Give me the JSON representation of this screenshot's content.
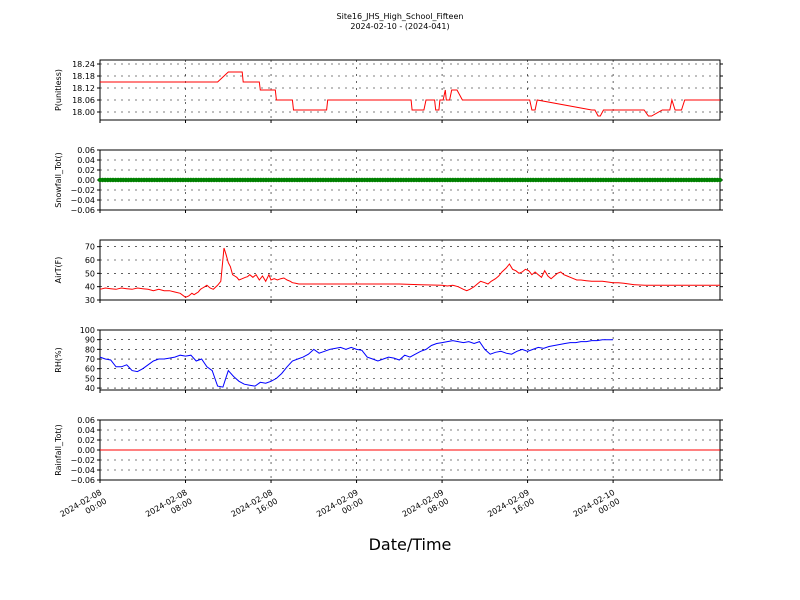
{
  "header": {
    "title": "Site16_JHS_High_School_Fifteen",
    "subtitle": "2024-02-10 - (2024-041)"
  },
  "xlabel": "Date/Time",
  "x_ticks": [
    {
      "t": 0,
      "line1": "2024-02-08",
      "line2": "00:00"
    },
    {
      "t": 8,
      "line1": "2024-02-08",
      "line2": "08:00"
    },
    {
      "t": 16,
      "line1": "2024-02-08",
      "line2": "16:00"
    },
    {
      "t": 24,
      "line1": "2024-02-09",
      "line2": "00:00"
    },
    {
      "t": 32,
      "line1": "2024-02-09",
      "line2": "08:00"
    },
    {
      "t": 40,
      "line1": "2024-02-09",
      "line2": "16:00"
    },
    {
      "t": 48,
      "line1": "2024-02-10",
      "line2": "00:00"
    }
  ],
  "chart_data": [
    {
      "type": "line",
      "ylabel": "P(unitless)",
      "ylim": [
        17.96,
        18.26
      ],
      "yticks": [
        "18.00",
        "18.06",
        "18.12",
        "18.18",
        "18.24"
      ],
      "grid": true,
      "color": "#ff0000",
      "series": [
        {
          "x": [
            0,
            10.9,
            11,
            12,
            12.1,
            13.3,
            13.4,
            14.9,
            15,
            16.4,
            16.5,
            18,
            18.1,
            21.2,
            21.3,
            29.1,
            29.2,
            30.3,
            30.5,
            31.3,
            31.4,
            31.7,
            31.8,
            32.1,
            32.3,
            32.4,
            32.7,
            32.9,
            33.4,
            33.9,
            34.5,
            40.2,
            40.4,
            40.7,
            40.9,
            46,
            46.3,
            46.6,
            46.8,
            47.1,
            47.3,
            50.6,
            50.9,
            51.3,
            51.6,
            52.6,
            53.3,
            53.5,
            53.8,
            54.4,
            54.7,
            55.1,
            55.3,
            56.2,
            56.8,
            57.2,
            58
          ],
          "y": [
            18.15,
            18.15,
            18.15,
            18.2,
            18.2,
            18.2,
            18.15,
            18.15,
            18.11,
            18.11,
            18.06,
            18.06,
            18.01,
            18.01,
            18.06,
            18.06,
            18.01,
            18.01,
            18.06,
            18.06,
            18.01,
            18.01,
            18.06,
            18.06,
            18.11,
            18.06,
            18.06,
            18.11,
            18.11,
            18.06,
            18.06,
            18.06,
            18.01,
            18.01,
            18.06,
            18.01,
            18.01,
            17.98,
            17.98,
            18.01,
            18.01,
            18.01,
            18.01,
            17.98,
            17.98,
            18.01,
            18.01,
            18.06,
            18.01,
            18.01,
            18.06,
            18.06,
            18.06,
            18.06,
            18.06,
            18.06,
            18.06
          ]
        }
      ]
    },
    {
      "type": "scatter",
      "ylabel": "Snowfall_Tot()",
      "ylim": [
        -0.06,
        0.06
      ],
      "yticks": [
        "−0.06",
        "−0.04",
        "−0.02",
        "0.00",
        "0.02",
        "0.04",
        "0.06"
      ],
      "grid": true,
      "color": "#008000",
      "constant_value": 0.0,
      "point_count": 240
    },
    {
      "type": "line",
      "ylabel": "AirT(F)",
      "ylim": [
        30,
        75
      ],
      "yticks": [
        "30",
        "40",
        "50",
        "60",
        "70"
      ],
      "grid": true,
      "color": "#ff0000",
      "series": [
        {
          "x": [
            0,
            0.5,
            1,
            1.5,
            2,
            2.5,
            3,
            3.5,
            4,
            4.5,
            5,
            5.5,
            6,
            6.5,
            7,
            7.5,
            8,
            8.3,
            8.6,
            8.8,
            9,
            9.2,
            9.4,
            9.6,
            9.8,
            10,
            10.3,
            10.6,
            11,
            11.3,
            11.6,
            11.8,
            12,
            12.2,
            12.4,
            12.6,
            12.8,
            13,
            13.3,
            13.6,
            13.8,
            14,
            14.3,
            14.6,
            14.9,
            15.2,
            15.5,
            15.8,
            16,
            16.3,
            16.6,
            16.9,
            17.2,
            17.5,
            17.8,
            18,
            18.3,
            18.6,
            19,
            19.5,
            20,
            21,
            22,
            24,
            26,
            28,
            30,
            32,
            32.5,
            33,
            33.5,
            34,
            34.3,
            34.6,
            35,
            35.3,
            35.6,
            36,
            36.3,
            36.6,
            37,
            37.3,
            37.6,
            38,
            38.3,
            38.6,
            38.9,
            39.2,
            39.5,
            39.8,
            40.1,
            40.4,
            40.7,
            41,
            41.3,
            41.6,
            41.9,
            42.2,
            42.5,
            42.8,
            43.1,
            43.4,
            43.7,
            44,
            44.3,
            44.6,
            45,
            45.5,
            46,
            46.5,
            47,
            47.5,
            48,
            48.5,
            49,
            49.5,
            50,
            51,
            52,
            53,
            54,
            55,
            56,
            57,
            58
          ],
          "y": [
            38,
            39,
            38.5,
            38,
            39,
            38.5,
            38,
            39,
            38.5,
            38,
            37,
            38,
            37,
            37,
            36,
            35,
            32,
            33,
            35,
            34,
            35,
            36,
            38,
            39,
            40,
            41,
            39,
            38,
            41,
            44,
            69,
            64,
            58,
            55,
            49,
            48,
            47,
            45,
            46,
            47,
            47.5,
            49,
            47,
            49,
            45,
            48,
            44,
            49,
            45,
            46,
            45,
            46,
            46.5,
            45,
            44,
            43,
            42.5,
            42,
            42,
            42,
            42,
            42,
            42,
            42,
            42,
            42,
            41.5,
            41,
            40.5,
            41,
            40,
            38,
            37,
            38,
            40,
            42,
            44,
            43,
            42,
            44,
            46,
            48,
            51,
            54,
            57,
            53,
            52,
            50,
            51,
            53,
            52,
            49,
            51,
            49,
            47,
            52,
            48,
            46,
            48,
            50,
            51,
            49,
            48,
            47,
            46,
            45,
            45,
            44.5,
            44,
            44,
            44,
            43.5,
            43,
            43,
            42.5,
            42,
            41.5,
            41,
            41,
            41,
            41,
            41,
            41,
            41,
            41
          ],
          "_pad": []
        }
      ]
    },
    {
      "type": "line",
      "ylabel": "RH(%)",
      "ylim": [
        38,
        100
      ],
      "yticks": [
        "40",
        "50",
        "60",
        "70",
        "80",
        "90",
        "100"
      ],
      "grid": true,
      "color": "#0000ff",
      "series": [
        {
          "x": [
            0,
            0.5,
            1,
            1.5,
            2,
            2.5,
            3,
            3.5,
            4,
            4.5,
            5,
            5.5,
            6,
            6.5,
            7,
            7.5,
            8,
            8.5,
            9,
            9.5,
            10,
            10.5,
            11,
            11.5,
            12,
            12.5,
            13,
            13.5,
            14,
            14.5,
            15,
            15.5,
            16,
            16.5,
            17,
            17.5,
            18,
            18.5,
            19,
            19.5,
            20,
            20.5,
            21,
            21.5,
            22,
            22.5,
            23,
            23.5,
            24,
            24.5,
            25,
            25.5,
            26,
            26.5,
            27,
            27.5,
            28,
            28.5,
            29,
            29.5,
            30,
            30.5,
            31,
            31.5,
            32,
            32.5,
            33,
            33.5,
            34,
            34.5,
            35,
            35.5,
            36,
            36.5,
            37,
            37.5,
            38,
            38.5,
            39,
            39.5,
            40,
            40.5,
            41,
            41.5,
            42,
            42.5,
            43,
            43.5,
            44,
            44.5,
            45,
            45.5,
            46,
            46.5,
            47,
            47.5,
            48
          ],
          "y": [
            72,
            70,
            69,
            62,
            62,
            64,
            58,
            57,
            60,
            64,
            68,
            70,
            70,
            71,
            72,
            74,
            73,
            74,
            68,
            70,
            62,
            58,
            42,
            41,
            58,
            52,
            47,
            44,
            43,
            42,
            46,
            45,
            47,
            50,
            55,
            62,
            68,
            70,
            72,
            75,
            80,
            76,
            78,
            80,
            81,
            82,
            80,
            82,
            80,
            79,
            72,
            70,
            68,
            70,
            72,
            71,
            69,
            74,
            72,
            75,
            78,
            80,
            84,
            86,
            87,
            88,
            89,
            88,
            87,
            88,
            86,
            88,
            80,
            75,
            77,
            78,
            76,
            75,
            78,
            80,
            78,
            80,
            82,
            81,
            83,
            84,
            85,
            86,
            87,
            87,
            88,
            88,
            89,
            89,
            90,
            90,
            90
          ],
          "_pad": []
        }
      ]
    },
    {
      "type": "line",
      "ylabel": "Rainfall_Tot()",
      "ylim": [
        -0.06,
        0.06
      ],
      "yticks": [
        "−0.06",
        "−0.04",
        "−0.02",
        "0.00",
        "0.02",
        "0.04",
        "0.06"
      ],
      "grid": true,
      "color": "#ff0000",
      "constant_value": 0.0
    }
  ]
}
